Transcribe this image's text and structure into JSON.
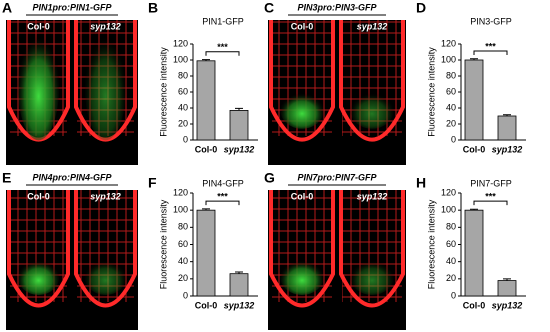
{
  "image_panels": [
    {
      "label": "A",
      "header": "PIN1pro:PIN1-GFP",
      "left": "Col-0",
      "right": "syp132"
    },
    {
      "label": "C",
      "header": "PIN3pro:PIN3-GFP",
      "left": "Col-0",
      "right": "syp132"
    },
    {
      "label": "E",
      "header": "PIN4pro:PIN4-GFP",
      "left": "Col-0",
      "right": "syp132"
    },
    {
      "label": "G",
      "header": "PIN7pro:PIN7-GFP",
      "left": "Col-0",
      "right": "syp132"
    }
  ],
  "chart_data": [
    {
      "type": "bar",
      "panel": "B",
      "title": "PIN1-GFP",
      "ylabel": "Fluorescence intensity",
      "categories": [
        "Col-0",
        "syp132"
      ],
      "values": [
        99,
        37
      ],
      "errors": [
        1.5,
        2.5
      ],
      "color": "#a6a6a6",
      "ylim": [
        0,
        120
      ],
      "yticks": [
        0,
        20,
        40,
        60,
        80,
        100,
        120
      ],
      "annotation": "***"
    },
    {
      "type": "bar",
      "panel": "D",
      "title": "PIN3-GFP",
      "ylabel": "Fluorescence intensity",
      "categories": [
        "Col-0",
        "syp132"
      ],
      "values": [
        100,
        30
      ],
      "errors": [
        1.5,
        1.5
      ],
      "color": "#a6a6a6",
      "ylim": [
        0,
        120
      ],
      "yticks": [
        0,
        20,
        40,
        60,
        80,
        100,
        120
      ],
      "annotation": "***"
    },
    {
      "type": "bar",
      "panel": "F",
      "title": "PIN4-GFP",
      "ylabel": "Fluorescence intensity",
      "categories": [
        "Col-0",
        "syp132"
      ],
      "values": [
        100,
        26
      ],
      "errors": [
        1.5,
        2
      ],
      "color": "#a6a6a6",
      "ylim": [
        0,
        120
      ],
      "yticks": [
        0,
        20,
        40,
        60,
        80,
        100,
        120
      ],
      "annotation": "***"
    },
    {
      "type": "bar",
      "panel": "H",
      "title": "PIN7-GFP",
      "ylabel": "Fluorescence intensity",
      "categories": [
        "Col-0",
        "syp132"
      ],
      "values": [
        100,
        18
      ],
      "errors": [
        1,
        2
      ],
      "color": "#a6a6a6",
      "ylim": [
        0,
        120
      ],
      "yticks": [
        0,
        20,
        40,
        60,
        80,
        100,
        120
      ],
      "annotation": "***"
    }
  ]
}
